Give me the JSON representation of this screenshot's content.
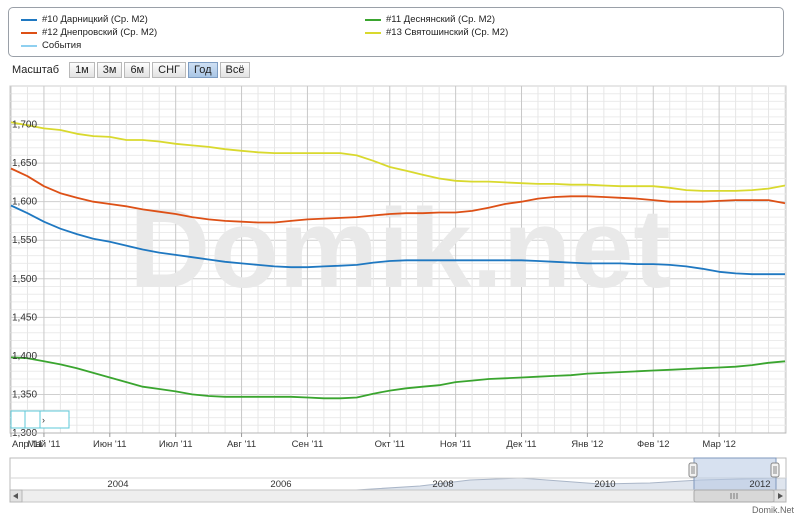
{
  "legend": {
    "items": [
      {
        "label": "#10 Дарницкий (Ср. М2)",
        "color": "#1f78c1"
      },
      {
        "label": "#11 Деснянский (Ср. М2)",
        "color": "#3aa52f"
      },
      {
        "label": "#12 Днепровский (Ср. М2)",
        "color": "#dd5016"
      },
      {
        "label": "#13 Святошинский (Ср. М2)",
        "color": "#d9d92e"
      },
      {
        "label": "События",
        "color": "#8fd0f0"
      }
    ]
  },
  "zoom": {
    "label": "Масштаб",
    "buttons": [
      "1м",
      "3м",
      "6м",
      "СНГ",
      "Год",
      "Всё"
    ],
    "active": "Год"
  },
  "watermark": "Domik.net",
  "footer_brand": "Domik.Net",
  "navigator": {
    "year_labels": [
      "2004",
      "2006",
      "2008",
      "2010",
      "2012"
    ]
  },
  "chart_data": {
    "type": "line",
    "x": [
      "Апр '11",
      "",
      "Май '11",
      "",
      "",
      "",
      "Июн '11",
      "",
      "",
      "",
      "Июл '11",
      "",
      "",
      "",
      "Авг '11",
      "",
      "",
      "",
      "Сен '11",
      "",
      "",
      "",
      "",
      "Окт '11",
      "",
      "",
      "",
      "Ноя '11",
      "",
      "",
      "",
      "Дек '11",
      "",
      "",
      "",
      "Янв '12",
      "",
      "",
      "",
      "Фев '12",
      "",
      "",
      "",
      "Мар '12",
      "",
      "",
      "",
      ""
    ],
    "x_tick_labels": [
      "Апр '11",
      "Май '11",
      "Июн '11",
      "Июл '11",
      "Авг '11",
      "Сен '11",
      "Окт '11",
      "Ноя '11",
      "Дек '11",
      "Янв '12",
      "Фев '12",
      "Мар '12"
    ],
    "y_tick_labels": [
      "1,300",
      "1,350",
      "1,400",
      "1,450",
      "1,500",
      "1,550",
      "1,600",
      "1,650",
      "1,700"
    ],
    "ylim": [
      1300,
      1750
    ],
    "grid": true,
    "legend_position": "top",
    "series": [
      {
        "name": "#13 Святошинский (Ср. М2)",
        "color": "#d9d92e",
        "values": [
          1703,
          1699,
          1695,
          1693,
          1688,
          1685,
          1684,
          1680,
          1680,
          1678,
          1675,
          1673,
          1671,
          1668,
          1666,
          1664,
          1663,
          1663,
          1663,
          1663,
          1663,
          1660,
          1653,
          1645,
          1640,
          1635,
          1630,
          1627,
          1626,
          1626,
          1625,
          1624,
          1623,
          1623,
          1622,
          1622,
          1621,
          1620,
          1620,
          1620,
          1618,
          1615,
          1614,
          1614,
          1614,
          1615,
          1617,
          1621
        ]
      },
      {
        "name": "#12 Днепровский (Ср. М2)",
        "color": "#dd5016",
        "values": [
          1643,
          1633,
          1620,
          1611,
          1605,
          1600,
          1597,
          1594,
          1590,
          1587,
          1584,
          1580,
          1577,
          1575,
          1574,
          1573,
          1573,
          1575,
          1577,
          1578,
          1579,
          1580,
          1582,
          1584,
          1585,
          1585,
          1586,
          1586,
          1588,
          1592,
          1597,
          1600,
          1604,
          1606,
          1607,
          1607,
          1606,
          1605,
          1604,
          1602,
          1600,
          1600,
          1600,
          1601,
          1602,
          1602,
          1602,
          1598
        ]
      },
      {
        "name": "#10 Дарницкий (Ср. М2)",
        "color": "#1f78c1",
        "values": [
          1595,
          1585,
          1574,
          1565,
          1558,
          1552,
          1548,
          1543,
          1538,
          1534,
          1531,
          1528,
          1525,
          1522,
          1520,
          1518,
          1516,
          1515,
          1515,
          1516,
          1517,
          1518,
          1521,
          1523,
          1524,
          1524,
          1524,
          1524,
          1524,
          1524,
          1524,
          1524,
          1523,
          1522,
          1521,
          1520,
          1520,
          1520,
          1519,
          1519,
          1518,
          1516,
          1513,
          1509,
          1507,
          1506,
          1506,
          1506
        ]
      },
      {
        "name": "#11 Деснянский (Ср. М2)",
        "color": "#3aa52f",
        "values": [
          1398,
          1397,
          1393,
          1389,
          1384,
          1378,
          1372,
          1366,
          1360,
          1357,
          1354,
          1350,
          1348,
          1347,
          1347,
          1347,
          1347,
          1347,
          1346,
          1345,
          1345,
          1346,
          1351,
          1355,
          1358,
          1360,
          1362,
          1366,
          1368,
          1370,
          1371,
          1372,
          1373,
          1374,
          1375,
          1377,
          1378,
          1379,
          1380,
          1381,
          1382,
          1383,
          1384,
          1385,
          1386,
          1388,
          1391,
          1393
        ]
      }
    ]
  }
}
